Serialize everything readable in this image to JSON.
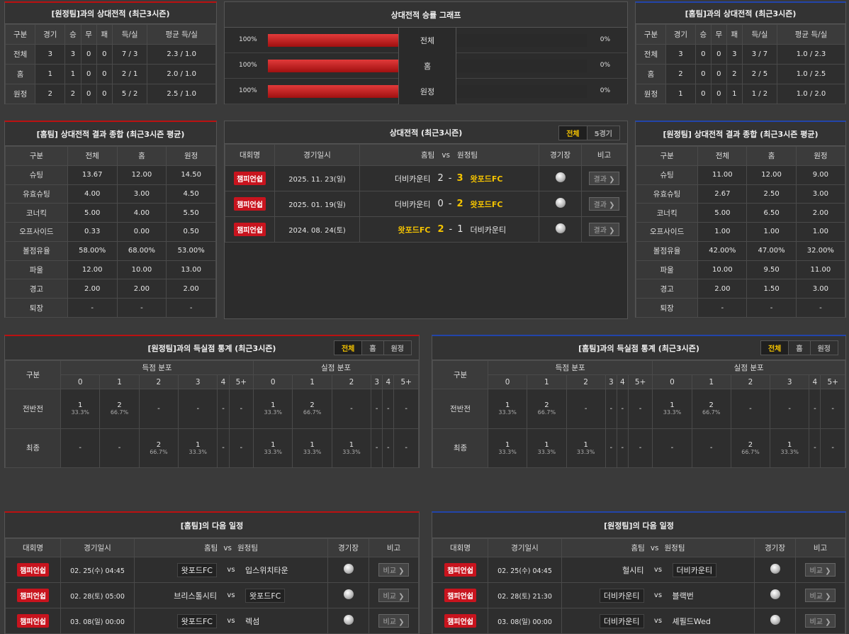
{
  "h2h_away": {
    "title": "[원정팀]과의 상대전적 (최근3시즌)",
    "headers": [
      "구분",
      "경기",
      "승",
      "무",
      "패",
      "득/실",
      "평균 득/실"
    ],
    "rows": [
      [
        "전체",
        "3",
        "3",
        "0",
        "0",
        "7 / 3",
        "2.3 / 1.0"
      ],
      [
        "홈",
        "1",
        "1",
        "0",
        "0",
        "2 / 1",
        "2.0 / 1.0"
      ],
      [
        "원정",
        "2",
        "2",
        "0",
        "0",
        "5 / 2",
        "2.5 / 1.0"
      ]
    ]
  },
  "graph": {
    "title": "상대전적 승률 그래프",
    "rows": [
      {
        "label": "전체",
        "left": "100%",
        "right": "0%",
        "fill": 100
      },
      {
        "label": "홈",
        "left": "100%",
        "right": "0%",
        "fill": 100
      },
      {
        "label": "원정",
        "left": "100%",
        "right": "0%",
        "fill": 100
      }
    ]
  },
  "h2h_home": {
    "title": "[홈팀]과의 상대전적 (최근3시즌)",
    "headers": [
      "구분",
      "경기",
      "승",
      "무",
      "패",
      "득/실",
      "평균 득/실"
    ],
    "rows": [
      [
        "전체",
        "3",
        "0",
        "0",
        "3",
        "3 / 7",
        "1.0 / 2.3"
      ],
      [
        "홈",
        "2",
        "0",
        "0",
        "2",
        "2 / 5",
        "1.0 / 2.5"
      ],
      [
        "원정",
        "1",
        "0",
        "0",
        "1",
        "1 / 2",
        "1.0 / 2.0"
      ]
    ]
  },
  "summary_home": {
    "title": "[홈팀] 상대전적 결과 종합 (최근3시즌 평균)",
    "headers": [
      "구분",
      "전체",
      "홈",
      "원정"
    ],
    "rows": [
      [
        "슈팅",
        "13.67",
        "12.00",
        "14.50"
      ],
      [
        "유효슈팅",
        "4.00",
        "3.00",
        "4.50"
      ],
      [
        "코너킥",
        "5.00",
        "4.00",
        "5.50"
      ],
      [
        "오프사이드",
        "0.33",
        "0.00",
        "0.50"
      ],
      [
        "볼점유율",
        "58.00%",
        "68.00%",
        "53.00%"
      ],
      [
        "파울",
        "12.00",
        "10.00",
        "13.00"
      ],
      [
        "경고",
        "2.00",
        "2.00",
        "2.00"
      ],
      [
        "퇴장",
        "-",
        "-",
        "-"
      ]
    ]
  },
  "recent": {
    "title": "상대전적 (최근3시즌)",
    "tabs": [
      "전체",
      "5경기"
    ],
    "headers": {
      "league": "대회명",
      "date": "경기일시",
      "home": "홈팀",
      "vs": "vs",
      "away": "원정팀",
      "venue": "경기장",
      "note": "비고"
    },
    "rows": [
      {
        "league": "챔피언쉽",
        "date": "2025. 11. 23(일)",
        "home": "더비카운티",
        "hs": "2",
        "sep": "-",
        "as": "3",
        "away": "왓포드FC",
        "btn": "결과 ❯",
        "winner": "away"
      },
      {
        "league": "챔피언쉽",
        "date": "2025. 01. 19(일)",
        "home": "더비카운티",
        "hs": "0",
        "sep": "-",
        "as": "2",
        "away": "왓포드FC",
        "btn": "결과 ❯",
        "winner": "away"
      },
      {
        "league": "챔피언쉽",
        "date": "2024. 08. 24(토)",
        "home": "왓포드FC",
        "hs": "2",
        "sep": "-",
        "as": "1",
        "away": "더비카운티",
        "btn": "결과 ❯",
        "winner": "home"
      }
    ]
  },
  "summary_away": {
    "title": "[원정팀] 상대전적 결과 종합 (최근3시즌 평균)",
    "headers": [
      "구분",
      "전체",
      "홈",
      "원정"
    ],
    "rows": [
      [
        "슈팅",
        "11.00",
        "12.00",
        "9.00"
      ],
      [
        "유효슈팅",
        "2.67",
        "2.50",
        "3.00"
      ],
      [
        "코너킥",
        "5.00",
        "6.50",
        "2.00"
      ],
      [
        "오프사이드",
        "1.00",
        "1.00",
        "1.00"
      ],
      [
        "볼점유율",
        "42.00%",
        "47.00%",
        "32.00%"
      ],
      [
        "파울",
        "10.00",
        "9.50",
        "11.00"
      ],
      [
        "경고",
        "2.00",
        "1.50",
        "3.00"
      ],
      [
        "퇴장",
        "-",
        "-",
        "-"
      ]
    ]
  },
  "goals_left": {
    "title": "[원정팀]과의 득실점 통계 (최근3시즌)",
    "tabs": [
      "전체",
      "홈",
      "원정"
    ],
    "col_group": "구분",
    "scored": "득점 분포",
    "conceded": "실점 분포",
    "buckets": [
      "0",
      "1",
      "2",
      "3",
      "4",
      "5+"
    ],
    "rows": [
      {
        "label": "전반전",
        "cells": [
          [
            "1",
            "33.3%"
          ],
          [
            "2",
            "66.7%"
          ],
          [
            "-",
            ""
          ],
          [
            "-",
            ""
          ],
          [
            "-",
            ""
          ],
          [
            "-",
            ""
          ],
          [
            "1",
            "33.3%"
          ],
          [
            "2",
            "66.7%"
          ],
          [
            "-",
            ""
          ],
          [
            "-",
            ""
          ],
          [
            "-",
            ""
          ],
          [
            "-",
            ""
          ]
        ]
      },
      {
        "label": "최종",
        "cells": [
          [
            "-",
            ""
          ],
          [
            "-",
            ""
          ],
          [
            "2",
            "66.7%"
          ],
          [
            "1",
            "33.3%"
          ],
          [
            "-",
            ""
          ],
          [
            "-",
            ""
          ],
          [
            "1",
            "33.3%"
          ],
          [
            "1",
            "33.3%"
          ],
          [
            "1",
            "33.3%"
          ],
          [
            "-",
            ""
          ],
          [
            "-",
            ""
          ],
          [
            "-",
            ""
          ]
        ]
      }
    ]
  },
  "goals_right": {
    "title": "[홈팀]과의 득실점 통계 (최근3시즌)",
    "tabs": [
      "전체",
      "홈",
      "원정"
    ],
    "col_group": "구분",
    "scored": "득점 분포",
    "conceded": "실점 분포",
    "buckets": [
      "0",
      "1",
      "2",
      "3",
      "4",
      "5+"
    ],
    "rows": [
      {
        "label": "전반전",
        "cells": [
          [
            "1",
            "33.3%"
          ],
          [
            "2",
            "66.7%"
          ],
          [
            "-",
            ""
          ],
          [
            "-",
            ""
          ],
          [
            "-",
            ""
          ],
          [
            "-",
            ""
          ],
          [
            "1",
            "33.3%"
          ],
          [
            "2",
            "66.7%"
          ],
          [
            "-",
            ""
          ],
          [
            "-",
            ""
          ],
          [
            "-",
            ""
          ],
          [
            "-",
            ""
          ]
        ]
      },
      {
        "label": "최종",
        "cells": [
          [
            "1",
            "33.3%"
          ],
          [
            "1",
            "33.3%"
          ],
          [
            "1",
            "33.3%"
          ],
          [
            "-",
            ""
          ],
          [
            "-",
            ""
          ],
          [
            "-",
            ""
          ],
          [
            "-",
            ""
          ],
          [
            "-",
            ""
          ],
          [
            "2",
            "66.7%"
          ],
          [
            "1",
            "33.3%"
          ],
          [
            "-",
            ""
          ],
          [
            "-",
            ""
          ]
        ]
      }
    ]
  },
  "next_home": {
    "title": "[홈팀]의 다음 일정",
    "headers": {
      "league": "대회명",
      "date": "경기일시",
      "home": "홈팀",
      "vs": "vs",
      "away": "원정팀",
      "venue": "경기장",
      "note": "비고"
    },
    "rows": [
      {
        "league": "챔피언쉽",
        "date": "02. 25(수) 04:45",
        "home": "왓포드FC",
        "vs": "vs",
        "away": "입스위치타운",
        "btn": "비교 ❯",
        "boxed": "home"
      },
      {
        "league": "챔피언쉽",
        "date": "02. 28(토) 05:00",
        "home": "브리스톨시티",
        "vs": "vs",
        "away": "왓포드FC",
        "btn": "비교 ❯",
        "boxed": "away"
      },
      {
        "league": "챔피언쉽",
        "date": "03. 08(일) 00:00",
        "home": "왓포드FC",
        "vs": "vs",
        "away": "렉섬",
        "btn": "비교 ❯",
        "boxed": "home"
      }
    ]
  },
  "next_away": {
    "title": "[원정팀]의 다음 일정",
    "headers": {
      "league": "대회명",
      "date": "경기일시",
      "home": "홈팀",
      "vs": "vs",
      "away": "원정팀",
      "venue": "경기장",
      "note": "비고"
    },
    "rows": [
      {
        "league": "챔피언쉽",
        "date": "02. 25(수) 04:45",
        "home": "헐시티",
        "vs": "vs",
        "away": "더비카운티",
        "btn": "비교 ❯",
        "boxed": "away"
      },
      {
        "league": "챔피언쉽",
        "date": "02. 28(토) 21:30",
        "home": "더비카운티",
        "vs": "vs",
        "away": "블랙번",
        "btn": "비교 ❯",
        "boxed": "home"
      },
      {
        "league": "챔피언쉽",
        "date": "03. 08(일) 00:00",
        "home": "더비카운티",
        "vs": "vs",
        "away": "셰필드Wed",
        "btn": "비교 ❯",
        "boxed": "home"
      }
    ]
  },
  "colors": {
    "accent": "#f5c400",
    "league_badge": "#c8141e",
    "bar": "#d02a2a"
  }
}
